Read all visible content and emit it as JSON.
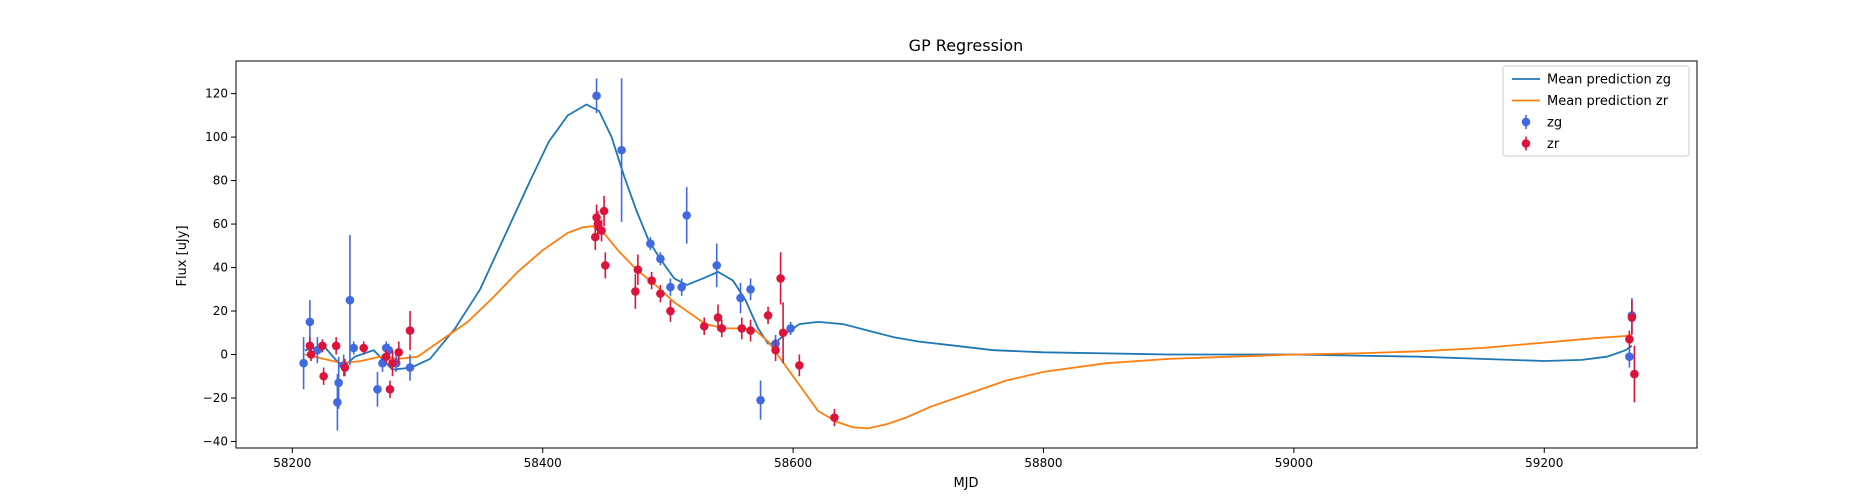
{
  "chart_data": {
    "type": "scatter",
    "title": "GP Regression",
    "xlabel": "MJD",
    "ylabel": "Flux [uJy]",
    "xlim": [
      58155,
      59322
    ],
    "ylim": [
      -43,
      135
    ],
    "xticks": [
      58200,
      58400,
      58600,
      58800,
      59000,
      59200
    ],
    "yticks": [
      -40,
      -20,
      0,
      20,
      40,
      60,
      80,
      100,
      120
    ],
    "grid": false,
    "legend_position": "top-right",
    "legend": [
      "Mean prediction zg",
      "Mean prediction zr",
      "zg",
      "zr"
    ],
    "series": [
      {
        "name": "Mean prediction zg",
        "kind": "line",
        "color": "#1f77b4",
        "points": [
          [
            58210,
            2
          ],
          [
            58225,
            4
          ],
          [
            58240,
            -6
          ],
          [
            58250,
            -1
          ],
          [
            58265,
            2
          ],
          [
            58280,
            -7
          ],
          [
            58295,
            -6
          ],
          [
            58310,
            -2
          ],
          [
            58330,
            12
          ],
          [
            58350,
            30
          ],
          [
            58370,
            55
          ],
          [
            58390,
            80
          ],
          [
            58405,
            98
          ],
          [
            58420,
            110
          ],
          [
            58435,
            115
          ],
          [
            58445,
            112
          ],
          [
            58455,
            100
          ],
          [
            58465,
            82
          ],
          [
            58475,
            66
          ],
          [
            58485,
            52
          ],
          [
            58495,
            43
          ],
          [
            58505,
            35
          ],
          [
            58515,
            32
          ],
          [
            58528,
            35
          ],
          [
            58540,
            38
          ],
          [
            58552,
            34
          ],
          [
            58562,
            25
          ],
          [
            58572,
            12
          ],
          [
            58580,
            5
          ],
          [
            58585,
            5
          ],
          [
            58595,
            10
          ],
          [
            58605,
            14
          ],
          [
            58620,
            15
          ],
          [
            58640,
            14
          ],
          [
            58660,
            11
          ],
          [
            58680,
            8
          ],
          [
            58700,
            6
          ],
          [
            58730,
            4
          ],
          [
            58760,
            2
          ],
          [
            58800,
            1
          ],
          [
            58850,
            0.5
          ],
          [
            58900,
            0
          ],
          [
            58950,
            0
          ],
          [
            59000,
            0
          ],
          [
            59050,
            -0.5
          ],
          [
            59100,
            -1
          ],
          [
            59150,
            -2
          ],
          [
            59200,
            -3
          ],
          [
            59230,
            -2.5
          ],
          [
            59250,
            -1
          ],
          [
            59265,
            2
          ],
          [
            59270,
            4
          ]
        ]
      },
      {
        "name": "Mean prediction zr",
        "kind": "line",
        "color": "#ff7f0e",
        "points": [
          [
            58210,
            0
          ],
          [
            58225,
            -2
          ],
          [
            58240,
            -4
          ],
          [
            58255,
            -3
          ],
          [
            58270,
            -1
          ],
          [
            58285,
            -2
          ],
          [
            58300,
            -1
          ],
          [
            58320,
            7
          ],
          [
            58340,
            15
          ],
          [
            58360,
            26
          ],
          [
            58380,
            38
          ],
          [
            58400,
            48
          ],
          [
            58420,
            56
          ],
          [
            58432,
            58.5
          ],
          [
            58440,
            59
          ],
          [
            58450,
            55
          ],
          [
            58460,
            48
          ],
          [
            58475,
            39
          ],
          [
            58490,
            32
          ],
          [
            58505,
            24
          ],
          [
            58520,
            18
          ],
          [
            58530,
            14
          ],
          [
            58545,
            12
          ],
          [
            58560,
            12
          ],
          [
            58570,
            11
          ],
          [
            58580,
            6
          ],
          [
            58590,
            -2
          ],
          [
            58600,
            -10
          ],
          [
            58610,
            -18
          ],
          [
            58620,
            -26
          ],
          [
            58635,
            -31
          ],
          [
            58648,
            -33.5
          ],
          [
            58660,
            -34
          ],
          [
            58675,
            -32
          ],
          [
            58690,
            -29
          ],
          [
            58710,
            -24
          ],
          [
            58740,
            -18
          ],
          [
            58770,
            -12
          ],
          [
            58800,
            -8
          ],
          [
            58850,
            -4
          ],
          [
            58900,
            -2
          ],
          [
            58950,
            -1
          ],
          [
            59000,
            0
          ],
          [
            59050,
            0.5
          ],
          [
            59100,
            1.5
          ],
          [
            59150,
            3
          ],
          [
            59200,
            5.5
          ],
          [
            59240,
            7.5
          ],
          [
            59265,
            8.5
          ],
          [
            59270,
            9
          ]
        ]
      },
      {
        "name": "zg",
        "kind": "errorbar",
        "color": "#4169e1",
        "points": [
          [
            58209,
            -4,
            12
          ],
          [
            58214,
            15,
            10
          ],
          [
            58220,
            2,
            6
          ],
          [
            58236,
            -22,
            13
          ],
          [
            58237,
            -13,
            12
          ],
          [
            58241,
            -5,
            5
          ],
          [
            58246,
            25,
            30
          ],
          [
            58249,
            3,
            3
          ],
          [
            58268,
            -16,
            8
          ],
          [
            58272,
            -4,
            4
          ],
          [
            58275,
            3,
            3
          ],
          [
            58277,
            2,
            3
          ],
          [
            58283,
            -4,
            4
          ],
          [
            58294,
            -6,
            6
          ],
          [
            58443,
            119,
            8
          ],
          [
            58463,
            94,
            33
          ],
          [
            58486,
            51,
            3
          ],
          [
            58494,
            44,
            3
          ],
          [
            58502,
            31,
            4
          ],
          [
            58511,
            31,
            4
          ],
          [
            58515,
            64,
            13
          ],
          [
            58539,
            41,
            10
          ],
          [
            58558,
            26,
            7
          ],
          [
            58566,
            30,
            5
          ],
          [
            58574,
            -21,
            9
          ],
          [
            58586,
            5,
            4
          ],
          [
            58598,
            12,
            3
          ],
          [
            59268,
            -1,
            5
          ],
          [
            59270,
            18,
            8
          ]
        ]
      },
      {
        "name": "zr",
        "kind": "errorbar",
        "color": "#dc143c",
        "points": [
          [
            58214,
            4,
            4
          ],
          [
            58215,
            0,
            3
          ],
          [
            58224,
            4,
            3
          ],
          [
            58225,
            -10,
            4
          ],
          [
            58235,
            4,
            4
          ],
          [
            58242,
            -6,
            4
          ],
          [
            58257,
            3,
            3
          ],
          [
            58275,
            -1,
            3
          ],
          [
            58278,
            -16,
            4
          ],
          [
            58280,
            -4,
            6
          ],
          [
            58285,
            1,
            5
          ],
          [
            58294,
            11,
            9
          ],
          [
            58442,
            54,
            6
          ],
          [
            58443,
            63,
            6
          ],
          [
            58444,
            60,
            6
          ],
          [
            58447,
            57,
            5
          ],
          [
            58449,
            66,
            7
          ],
          [
            58450,
            41,
            6
          ],
          [
            58474,
            29,
            8
          ],
          [
            58476,
            39,
            7
          ],
          [
            58487,
            34,
            4
          ],
          [
            58494,
            28,
            4
          ],
          [
            58502,
            20,
            5
          ],
          [
            58529,
            13,
            4
          ],
          [
            58540,
            17,
            6
          ],
          [
            58543,
            12,
            4
          ],
          [
            58559,
            12,
            5
          ],
          [
            58566,
            11,
            5
          ],
          [
            58580,
            18,
            4
          ],
          [
            58586,
            2,
            5
          ],
          [
            58590,
            35,
            12
          ],
          [
            58592,
            10,
            14
          ],
          [
            58605,
            -5,
            5
          ],
          [
            58633,
            -29,
            4
          ],
          [
            59268,
            7,
            4
          ],
          [
            59270,
            17,
            8
          ],
          [
            59272,
            -9,
            13
          ]
        ]
      }
    ]
  }
}
